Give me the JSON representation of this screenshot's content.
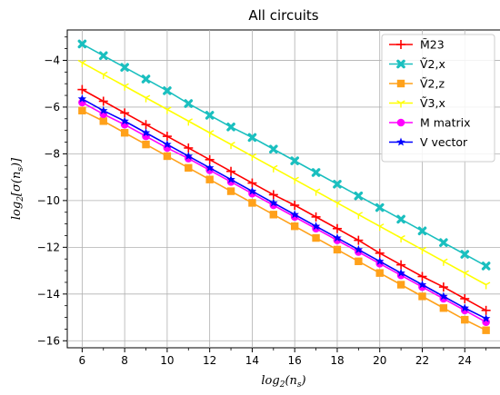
{
  "chart_data": {
    "type": "line",
    "title": "All circuits",
    "xlabel": "log2(ns)",
    "ylabel": "log2[σ(ns)]",
    "xlim": [
      5.3,
      25.7
    ],
    "ylim": [
      -16.3,
      -2.7
    ],
    "xticks": [
      6,
      8,
      10,
      12,
      14,
      16,
      18,
      20,
      22,
      24
    ],
    "yticks": [
      -16,
      -14,
      -12,
      -10,
      -8,
      -6,
      -4
    ],
    "x": [
      6,
      7,
      8,
      9,
      10,
      11,
      12,
      13,
      14,
      15,
      16,
      17,
      18,
      19,
      20,
      21,
      22,
      23,
      24,
      25
    ],
    "grid": true,
    "legend_position": "top-right",
    "series": [
      {
        "name": "M̃23",
        "color": "#ff0000",
        "marker": "plus",
        "values": [
          -5.25,
          -5.75,
          -6.25,
          -6.75,
          -7.25,
          -7.75,
          -8.25,
          -8.75,
          -9.25,
          -9.75,
          -10.2,
          -10.7,
          -11.2,
          -11.7,
          -12.25,
          -12.75,
          -13.25,
          -13.7,
          -14.2,
          -14.7
        ]
      },
      {
        "name": "Ṽ2,x",
        "color": "#1abfbf",
        "marker": "x",
        "values": [
          -3.3,
          -3.8,
          -4.3,
          -4.8,
          -5.3,
          -5.85,
          -6.35,
          -6.85,
          -7.3,
          -7.8,
          -8.3,
          -8.8,
          -9.3,
          -9.8,
          -10.3,
          -10.8,
          -11.3,
          -11.8,
          -12.3,
          -12.8
        ]
      },
      {
        "name": "Ṽ2,z",
        "color": "#ffa11a",
        "marker": "square",
        "values": [
          -6.15,
          -6.6,
          -7.1,
          -7.6,
          -8.1,
          -8.6,
          -9.1,
          -9.6,
          -10.1,
          -10.6,
          -11.1,
          -11.6,
          -12.1,
          -12.6,
          -13.1,
          -13.6,
          -14.1,
          -14.6,
          -15.1,
          -15.55
        ]
      },
      {
        "name": "Ṽ3,x",
        "color": "#ffff00",
        "marker": "tri",
        "values": [
          -4.1,
          -4.6,
          -5.1,
          -5.6,
          -6.1,
          -6.6,
          -7.1,
          -7.6,
          -8.1,
          -8.6,
          -9.1,
          -9.6,
          -10.1,
          -10.6,
          -11.1,
          -11.6,
          -12.1,
          -12.6,
          -13.1,
          -13.6
        ]
      },
      {
        "name": "M matrix",
        "color": "#ff00ff",
        "marker": "circle",
        "values": [
          -5.8,
          -6.3,
          -6.75,
          -7.25,
          -7.75,
          -8.2,
          -8.7,
          -9.2,
          -9.7,
          -10.2,
          -10.7,
          -11.2,
          -11.7,
          -12.2,
          -12.7,
          -13.2,
          -13.7,
          -14.2,
          -14.7,
          -15.2
        ]
      },
      {
        "name": "V vector",
        "color": "#0000ff",
        "marker": "star",
        "values": [
          -5.65,
          -6.15,
          -6.6,
          -7.1,
          -7.6,
          -8.1,
          -8.6,
          -9.1,
          -9.6,
          -10.1,
          -10.6,
          -11.1,
          -11.6,
          -12.1,
          -12.6,
          -13.1,
          -13.6,
          -14.1,
          -14.6,
          -15.05
        ]
      }
    ]
  }
}
